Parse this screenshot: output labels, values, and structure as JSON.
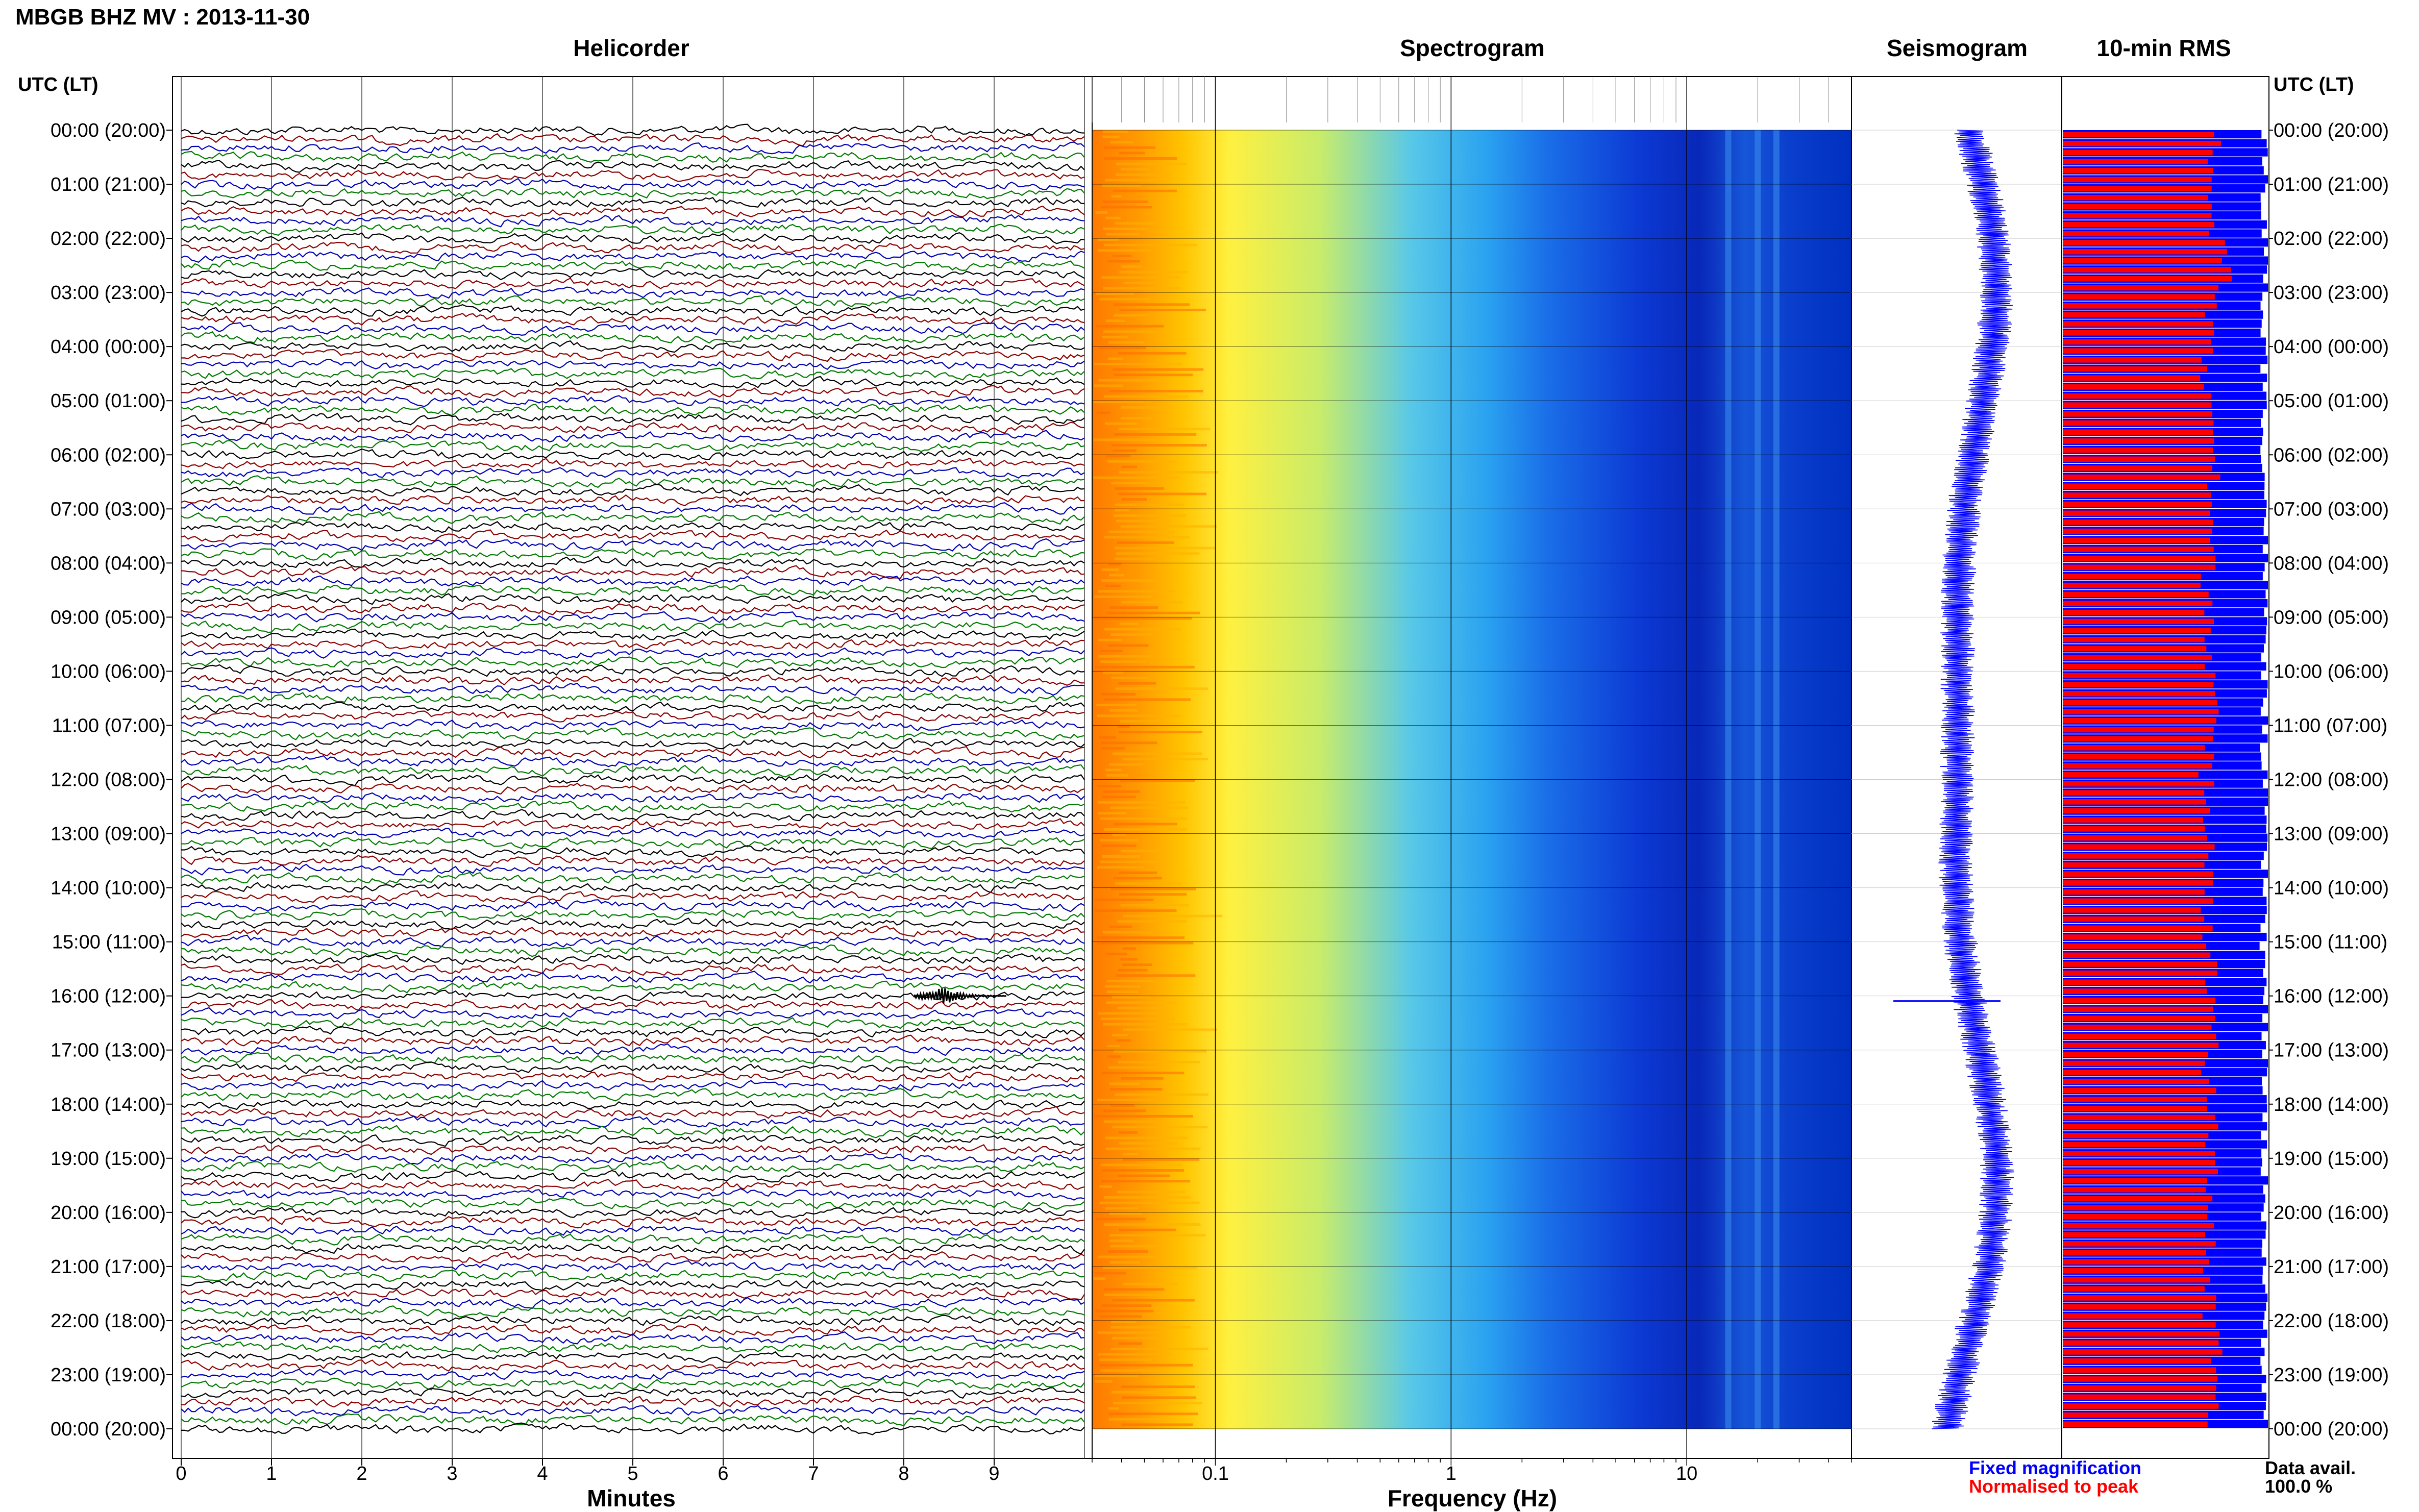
{
  "header": {
    "title": "MBGB BHZ MV : 2013-11-30"
  },
  "panels": {
    "helicorder": "Helicorder",
    "spectrogram": "Spectrogram",
    "seismogram": "Seismogram",
    "rms": "10-min RMS"
  },
  "axes": {
    "time_label_left": "UTC (LT)",
    "time_label_right": "UTC (LT)",
    "minutes_label": "Minutes",
    "frequency_label": "Frequency (Hz)"
  },
  "legend": {
    "fixed": "Fixed magnification",
    "normalised": "Normalised to peak",
    "data_avail_label": "Data avail.",
    "data_avail_value": "100.0 %"
  },
  "colors": {
    "trace_cycle": [
      "#000000",
      "#8b0000",
      "#0000b4",
      "#007a00"
    ],
    "rms_fixed": "#0000ff",
    "rms_normalised": "#ff0000",
    "legend_fixed": "#0000ff",
    "legend_normalised": "#ff0000"
  },
  "chart_data": [
    {
      "type": "line",
      "name": "helicorder",
      "xlabel": "Minutes",
      "x_ticks": [
        "0",
        "1",
        "2",
        "3",
        "4",
        "5",
        "6",
        "7",
        "8",
        "9"
      ],
      "xlim": [
        0,
        10
      ],
      "y_ticks": [
        "00:00 (20:00)",
        "01:00 (21:00)",
        "02:00 (22:00)",
        "03:00 (23:00)",
        "04:00 (00:00)",
        "05:00 (01:00)",
        "06:00 (02:00)",
        "07:00 (03:00)",
        "08:00 (04:00)",
        "09:00 (05:00)",
        "10:00 (06:00)",
        "11:00 (07:00)",
        "12:00 (08:00)",
        "13:00 (09:00)",
        "14:00 (10:00)",
        "15:00 (11:00)",
        "16:00 (12:00)",
        "17:00 (13:00)",
        "18:00 (14:00)",
        "19:00 (15:00)",
        "20:00 (16:00)",
        "21:00 (17:00)",
        "22:00 (18:00)",
        "23:00 (19:00)",
        "00:00 (20:00)"
      ],
      "lines_per_hour": 6,
      "event": {
        "time": "16:00",
        "minute": 8.4
      }
    },
    {
      "type": "heatmap",
      "name": "spectrogram",
      "xlabel": "Frequency (Hz)",
      "x_scale": "log",
      "xlim": [
        0.03,
        50
      ],
      "x_ticks": [
        "0.1",
        "1",
        "10"
      ],
      "colormap": [
        "#0000a0",
        "#0a2ad8",
        "#1e78f0",
        "#4ec8f0",
        "#a8e6b0",
        "#e8f050",
        "#ffd400",
        "#ffa000",
        "#ff7800"
      ]
    },
    {
      "type": "line",
      "name": "seismogram"
    },
    {
      "type": "bar",
      "name": "10-min RMS",
      "series": [
        {
          "name": "Fixed magnification",
          "values": [
            0.985,
            0.98,
            0.99,
            0.975,
            0.983,
            0.98,
            0.985,
            0.99,
            0.986,
            0.98,
            0.984,
            0.979,
            0.985,
            0.981,
            0.983,
            0.978,
            0.986,
            0.982,
            0.98,
            0.984,
            0.985,
            0.98,
            0.983,
            0.987
          ]
        },
        {
          "name": "Normalised to peak",
          "values": [
            0.74,
            0.73,
            0.79,
            0.72,
            0.7,
            0.74,
            0.73,
            0.72,
            0.71,
            0.73,
            0.74,
            0.7,
            0.72,
            0.73,
            0.71,
            0.72,
            0.74,
            0.71,
            0.72,
            0.73,
            0.72,
            0.71,
            0.74,
            0.72
          ]
        }
      ]
    }
  ]
}
